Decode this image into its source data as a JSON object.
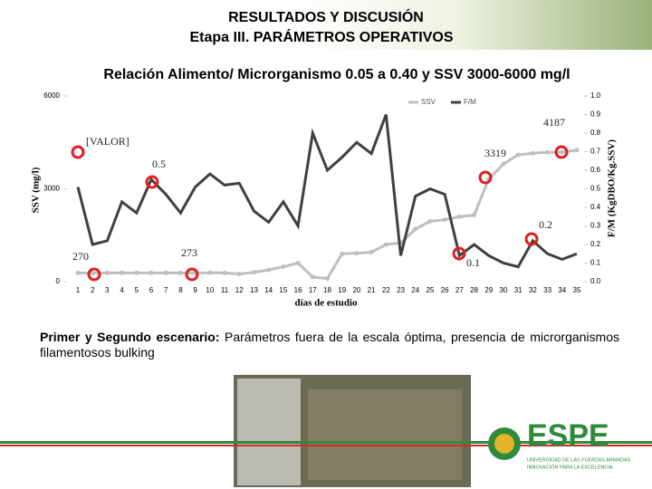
{
  "header": {
    "title": "RESULTADOS Y DISCUSIÓN",
    "subtitle": "Etapa III. PARÁMETROS OPERATIVOS"
  },
  "chart_data": {
    "type": "line",
    "title": "Relación Alimento/ Microrganismo 0.05 a 0.40 y SSV 3000-6000 mg/l",
    "x_label": "días de estudio",
    "y_label": "SSV (mg/l)",
    "y2_label": "F/M (KgDBO/Kg.SSV)",
    "categories": [
      1,
      2,
      3,
      4,
      5,
      6,
      7,
      8,
      9,
      10,
      11,
      12,
      13,
      14,
      15,
      16,
      17,
      18,
      19,
      20,
      21,
      22,
      23,
      24,
      25,
      26,
      27,
      28,
      29,
      30,
      31,
      32,
      33,
      34,
      35
    ],
    "series": [
      {
        "name": "SSV",
        "color": "#bfbfbf",
        "values": [
          280,
          270,
          280,
          280,
          280,
          280,
          280,
          280,
          273,
          290,
          280,
          250,
          300,
          380,
          480,
          600,
          150,
          100,
          900,
          920,
          950,
          1200,
          1250,
          1700,
          1950,
          2000,
          2100,
          2150,
          3319,
          3800,
          4100,
          4150,
          4180,
          4187,
          4250
        ]
      },
      {
        "name": "F/M",
        "color": "#404040",
        "axis": "y2",
        "values": [
          0.51,
          0.2,
          0.22,
          0.43,
          0.37,
          0.55,
          0.47,
          0.37,
          0.51,
          0.58,
          0.52,
          0.53,
          0.38,
          0.32,
          0.43,
          0.3,
          0.8,
          0.6,
          0.67,
          0.75,
          0.69,
          0.9,
          0.14,
          0.46,
          0.5,
          0.47,
          0.14,
          0.2,
          0.14,
          0.1,
          0.08,
          0.22,
          0.15,
          0.12,
          0.15
        ]
      }
    ],
    "ylim": [
      0,
      6000
    ],
    "yticks": [
      0,
      3000,
      6000
    ],
    "y2lim": [
      0,
      1
    ],
    "y2ticks": [
      {
        "value": 0,
        "label": "0.0"
      },
      0.1,
      0.2,
      0.3,
      0.4,
      0.5,
      0.6,
      0.7,
      0.8,
      0.9,
      {
        "value": 1,
        "label": "1.0"
      }
    ],
    "annotations": [
      "[VALOR]",
      "0.5",
      "4187",
      "3319",
      "270",
      "273",
      "0.2",
      "0.1"
    ]
  },
  "caption": {
    "bold": "Primer y Segundo escenario:",
    "text": " Parámetros fuera de la escala óptima, presencia de microrganismos filamentosos bulking"
  },
  "logo": {
    "name": "ESPE",
    "line1": "UNIVERSIDAD DE LAS FUERZAS ARMADAS",
    "line2": "INNOVACIÓN PARA LA EXCELENCIA"
  }
}
